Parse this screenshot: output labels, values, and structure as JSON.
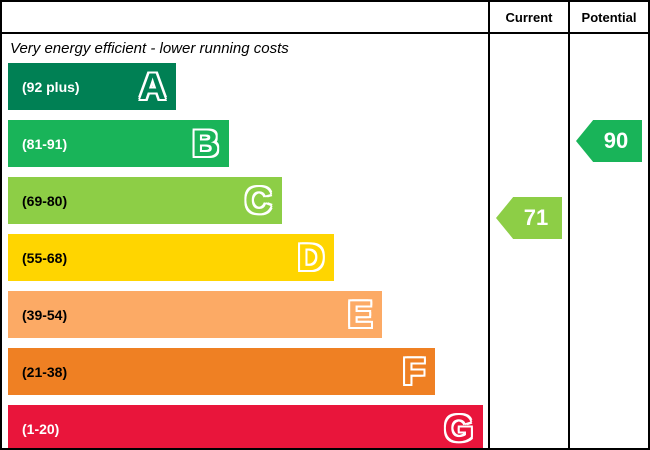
{
  "header": {
    "current_label": "Current",
    "potential_label": "Potential"
  },
  "caption_top": "Very energy efficient - lower running costs",
  "chart_data": {
    "type": "bar",
    "title": "Energy efficiency rating",
    "bands": [
      {
        "letter": "A",
        "range": "(92 plus)",
        "color": "#008054",
        "label_color": "#ffffff",
        "width_pct": 35
      },
      {
        "letter": "B",
        "range": "(81-91)",
        "color": "#19b459",
        "label_color": "#ffffff",
        "width_pct": 46
      },
      {
        "letter": "C",
        "range": "(69-80)",
        "color": "#8dce46",
        "label_color": "#000000",
        "width_pct": 57
      },
      {
        "letter": "D",
        "range": "(55-68)",
        "color": "#ffd500",
        "label_color": "#000000",
        "width_pct": 68
      },
      {
        "letter": "E",
        "range": "(39-54)",
        "color": "#fcaa65",
        "label_color": "#000000",
        "width_pct": 78
      },
      {
        "letter": "F",
        "range": "(21-38)",
        "color": "#ef8023",
        "label_color": "#000000",
        "width_pct": 89
      },
      {
        "letter": "G",
        "range": "(1-20)",
        "color": "#e9153b",
        "label_color": "#ffffff",
        "width_pct": 99
      }
    ],
    "current": {
      "value": "71",
      "band": "C",
      "color": "#8dce46"
    },
    "potential": {
      "value": "90",
      "band": "B",
      "color": "#19b459"
    }
  }
}
